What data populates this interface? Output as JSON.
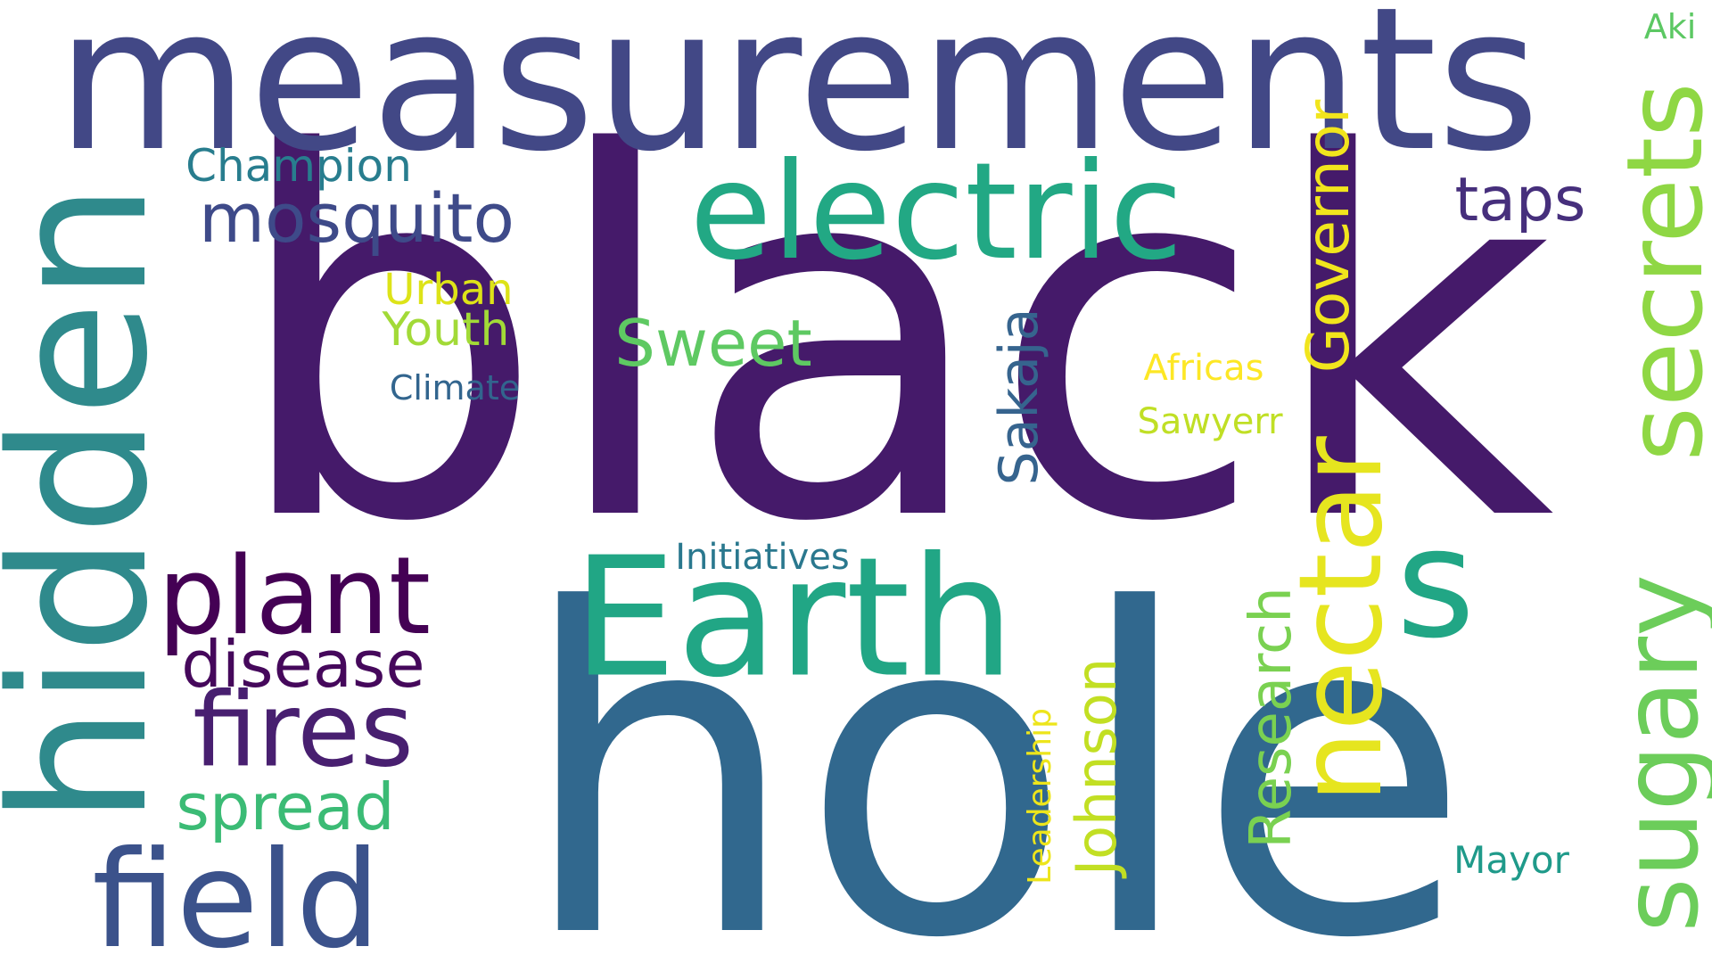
{
  "words": [
    {
      "key": "black",
      "text": "black",
      "color": "#451a6a"
    },
    {
      "key": "hole",
      "text": "hole",
      "color": "#31688e"
    },
    {
      "key": "measurements",
      "text": "measurements",
      "color": "#424886"
    },
    {
      "key": "hidden",
      "text": "hidden",
      "color": "#2f8a8c"
    },
    {
      "key": "electric",
      "text": "electric",
      "color": "#22a884"
    },
    {
      "key": "Earth",
      "text": "Earth",
      "color": "#21a685"
    },
    {
      "key": "nectar",
      "text": "nectar",
      "color": "#e6e51f"
    },
    {
      "key": "secrets",
      "text": "secrets",
      "color": "#8fd744"
    },
    {
      "key": "sugary",
      "text": "sugary",
      "color": "#6ccd5a"
    },
    {
      "key": "s",
      "text": "s",
      "color": "#21a685"
    },
    {
      "key": "field",
      "text": "field",
      "color": "#3b528b"
    },
    {
      "key": "plant",
      "text": "plant",
      "color": "#440154"
    },
    {
      "key": "fires",
      "text": "fires",
      "color": "#481f70"
    },
    {
      "key": "disease",
      "text": "disease",
      "color": "#45085b"
    },
    {
      "key": "spread",
      "text": "spread",
      "color": "#3bbb75"
    },
    {
      "key": "mosquito",
      "text": "mosquito",
      "color": "#3e4a89"
    },
    {
      "key": "Governor",
      "text": "Governor",
      "color": "#f1e51d"
    },
    {
      "key": "Research",
      "text": "Research",
      "color": "#7ad151"
    },
    {
      "key": "Johnson",
      "text": "Johnson",
      "color": "#c2df23"
    },
    {
      "key": "Sakaja",
      "text": "Sakaja",
      "color": "#36648e"
    },
    {
      "key": "taps",
      "text": "taps",
      "color": "#462f7c"
    },
    {
      "key": "Sweet",
      "text": "Sweet",
      "color": "#5ec962"
    },
    {
      "key": "Champion",
      "text": "Champion",
      "color": "#287d8e"
    },
    {
      "key": "Urban",
      "text": "Urban",
      "color": "#dde318"
    },
    {
      "key": "Youth",
      "text": "Youth",
      "color": "#a2da37"
    },
    {
      "key": "Climate",
      "text": "Climate",
      "color": "#32658e"
    },
    {
      "key": "Initiatives",
      "text": "Initiatives",
      "color": "#2a788e"
    },
    {
      "key": "Leadership",
      "text": "Leadership",
      "color": "#ede51b"
    },
    {
      "key": "Africas",
      "text": "Africas",
      "color": "#fde725"
    },
    {
      "key": "Sawyerr",
      "text": "Sawyerr",
      "color": "#c0df25"
    },
    {
      "key": "Mayor",
      "text": "Mayor",
      "color": "#1f9a8a"
    },
    {
      "key": "Aki",
      "text": "Aki",
      "color": "#5cc863"
    }
  ]
}
